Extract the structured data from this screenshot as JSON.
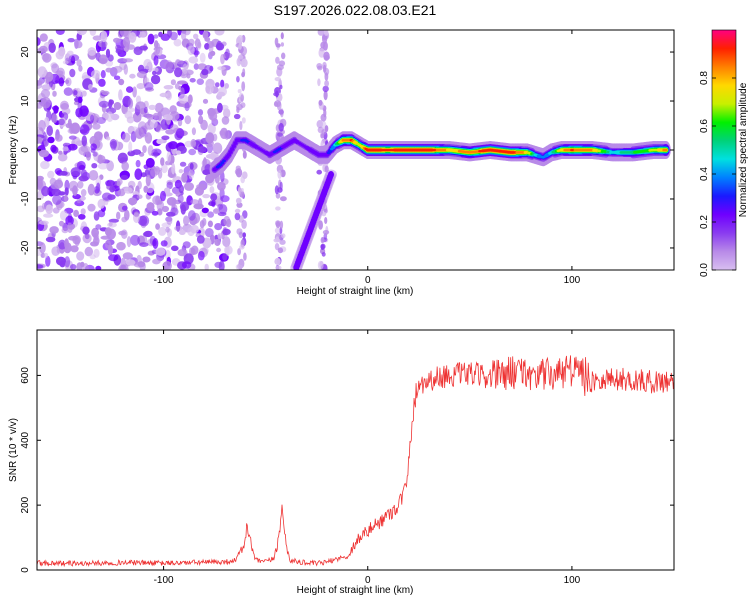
{
  "title": "S197.2026.022.08.03.E21",
  "chart_data": [
    {
      "type": "heatmap",
      "name": "spectrogram",
      "xlabel": "Height of straight line (km)",
      "ylabel": "Frequency (Hz)",
      "xlim": [
        -162,
        150
      ],
      "ylim": [
        -24.5,
        24.5
      ],
      "x_ticks": [
        -100,
        0,
        100
      ],
      "y_ticks": [
        -20,
        -10,
        0,
        10,
        20
      ],
      "colorbar": {
        "label": "Normalized spectral amplitude",
        "range": [
          0,
          1
        ],
        "ticks": [
          "0.0",
          "0.2",
          "0.4",
          "0.6",
          "0.8"
        ],
        "tick_values": [
          0,
          0.2,
          0.4,
          0.6,
          0.8
        ],
        "colormap": [
          "#ffffff",
          "#d8bff0",
          "#b88ae8",
          "#8a3cf0",
          "#6f00ff",
          "#1a1aff",
          "#0080ff",
          "#00e0e0",
          "#00d27a",
          "#00f000",
          "#c8f000",
          "#ffd800",
          "#ff8000",
          "#ff2000",
          "#ff0080"
        ]
      },
      "noise_region_x": [
        -162,
        -72
      ],
      "noise_streaks_x": [
        -62,
        -43,
        -22
      ],
      "signal_trace": {
        "x": [
          -75,
          -72,
          -68,
          -64,
          -60,
          -56,
          -52,
          -48,
          -44,
          -40,
          -36,
          -32,
          -28,
          -24,
          -20,
          -16,
          -12,
          -8,
          -4,
          0,
          10,
          20,
          30,
          40,
          50,
          60,
          70,
          78,
          82,
          86,
          90,
          95,
          100,
          110,
          120,
          130,
          140,
          146
        ],
        "y": [
          -4,
          -3,
          -1,
          2,
          2,
          1,
          0,
          -1,
          0,
          1,
          2,
          1,
          0,
          -1,
          -1,
          1,
          2,
          2,
          1,
          0,
          0,
          0,
          0,
          0,
          -0.5,
          0,
          -0.5,
          -0.5,
          -1,
          -1.5,
          -0.5,
          0,
          0,
          0,
          -0.5,
          -0.5,
          0,
          0
        ],
        "amplitude": [
          0.3,
          0.35,
          0.3,
          0.3,
          0.35,
          0.3,
          0.25,
          0.3,
          0.35,
          0.3,
          0.3,
          0.25,
          0.3,
          0.3,
          0.3,
          0.5,
          0.85,
          0.9,
          0.7,
          0.95,
          0.9,
          0.95,
          0.95,
          0.8,
          0.85,
          0.95,
          0.95,
          0.8,
          0.5,
          0.4,
          0.5,
          0.8,
          0.9,
          0.85,
          0.5,
          0.6,
          0.7,
          0.85
        ]
      },
      "diagonal_streak": {
        "x": [
          -35,
          -18
        ],
        "y": [
          -24,
          -5
        ]
      }
    },
    {
      "type": "line",
      "name": "snr",
      "xlabel": "Height of straight line (km)",
      "ylabel": "SNR (10 * v/v)",
      "xlim": [
        -162,
        150
      ],
      "ylim": [
        0,
        740
      ],
      "x_ticks": [
        -100,
        0,
        100
      ],
      "y_ticks": [
        0,
        200,
        400,
        600
      ],
      "series": [
        {
          "name": "SNR",
          "color": "#ee3333",
          "x": [
            -162,
            -140,
            -120,
            -100,
            -80,
            -70,
            -65,
            -61,
            -59,
            -57,
            -55,
            -50,
            -46,
            -44,
            -42,
            -40,
            -38,
            -34,
            -30,
            -25,
            -20,
            -15,
            -10,
            -8,
            -5,
            0,
            5,
            10,
            15,
            17,
            18,
            19,
            20,
            21,
            22,
            23,
            24,
            25,
            30,
            35,
            40,
            50,
            60,
            70,
            80,
            90,
            100,
            104,
            106,
            108,
            110,
            120,
            130,
            140,
            150
          ],
          "values": [
            22,
            20,
            23,
            21,
            24,
            25,
            30,
            70,
            135,
            75,
            30,
            25,
            35,
            90,
            185,
            80,
            30,
            25,
            22,
            20,
            24,
            35,
            40,
            60,
            95,
            120,
            145,
            170,
            200,
            230,
            250,
            260,
            330,
            400,
            470,
            520,
            560,
            575,
            585,
            595,
            600,
            605,
            595,
            610,
            605,
            600,
            610,
            640,
            580,
            600,
            590,
            590,
            585,
            580,
            585
          ]
        }
      ]
    }
  ]
}
